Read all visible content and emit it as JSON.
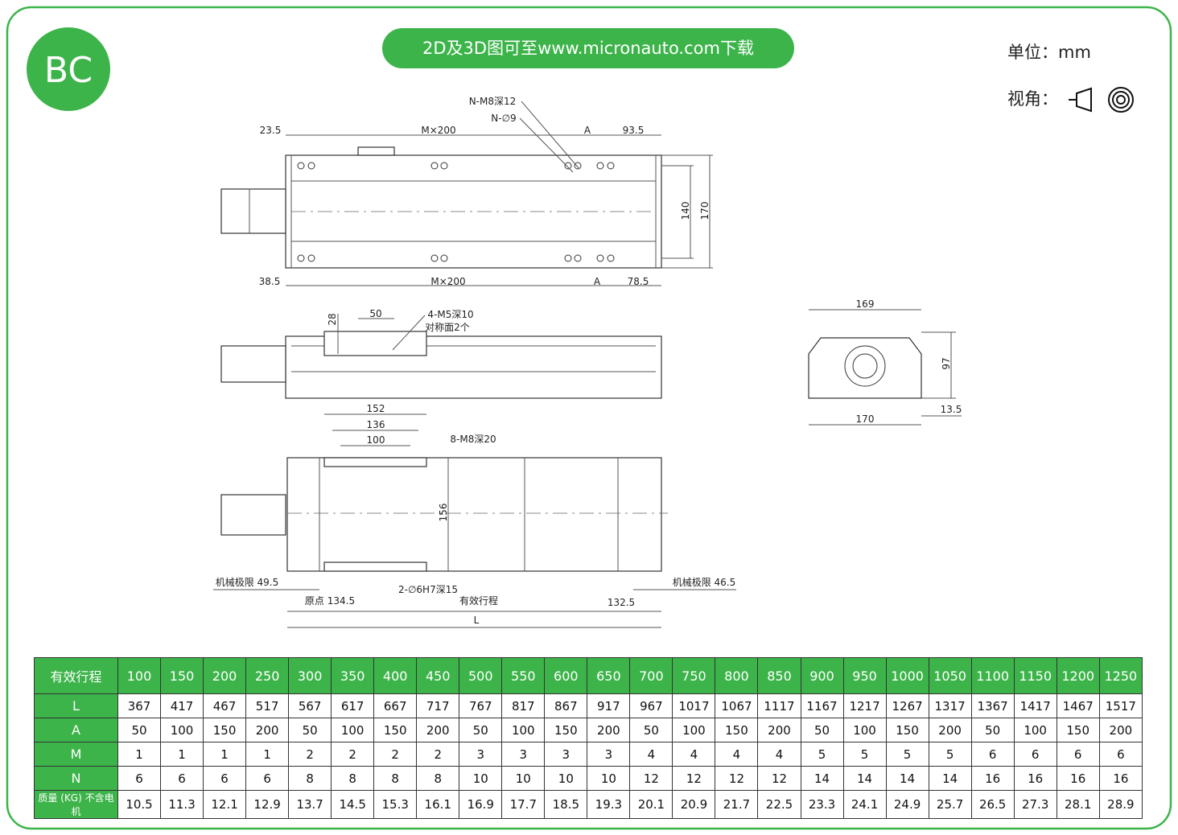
{
  "header": {
    "badge": "BC",
    "download": "2D及3D图可至www.micronauto.com下载",
    "unit": "单位：mm",
    "view": "视角："
  },
  "drawing": {
    "labels": [
      "23.5",
      "M×200",
      "A",
      "93.5",
      "N-M8深12",
      "N-∅9",
      "140",
      "170",
      "38.5",
      "M×200",
      "A",
      "78.5",
      "50",
      "28",
      "4-M5深10",
      "对称面2个",
      "152",
      "136",
      "100",
      "8-M8深20",
      "156",
      "机械极限 49.5",
      "2-∅6H7深15",
      "机械极限 46.5",
      "原点 134.5",
      "有效行程",
      "132.5",
      "L",
      "169",
      "97",
      "170",
      "13.5"
    ]
  },
  "table": {
    "header": [
      "有效行程",
      100,
      150,
      200,
      250,
      300,
      350,
      400,
      450,
      500,
      550,
      600,
      650,
      700,
      750,
      800,
      850,
      900,
      950,
      1000,
      1050,
      1100,
      1150,
      1200,
      1250
    ],
    "rows": [
      [
        "L",
        367,
        417,
        467,
        517,
        567,
        617,
        667,
        717,
        767,
        817,
        867,
        917,
        967,
        1017,
        1067,
        1117,
        1167,
        1217,
        1267,
        1317,
        1367,
        1417,
        1467,
        1517
      ],
      [
        "A",
        50,
        100,
        150,
        200,
        50,
        100,
        150,
        200,
        50,
        100,
        150,
        200,
        50,
        100,
        150,
        200,
        50,
        100,
        150,
        200,
        50,
        100,
        150,
        200
      ],
      [
        "M",
        1,
        1,
        1,
        1,
        2,
        2,
        2,
        2,
        3,
        3,
        3,
        3,
        4,
        4,
        4,
        4,
        5,
        5,
        5,
        5,
        6,
        6,
        6,
        6
      ],
      [
        "N",
        6,
        6,
        6,
        6,
        8,
        8,
        8,
        8,
        10,
        10,
        10,
        10,
        12,
        12,
        12,
        12,
        14,
        14,
        14,
        14,
        16,
        16,
        16,
        16
      ],
      [
        "质量 (KG) 不含电机",
        10.5,
        11.3,
        12.1,
        12.9,
        13.7,
        14.5,
        15.3,
        16.1,
        16.9,
        17.7,
        18.5,
        19.3,
        20.1,
        20.9,
        21.7,
        22.5,
        23.3,
        24.1,
        24.9,
        25.7,
        26.5,
        27.3,
        28.1,
        28.9
      ]
    ]
  }
}
